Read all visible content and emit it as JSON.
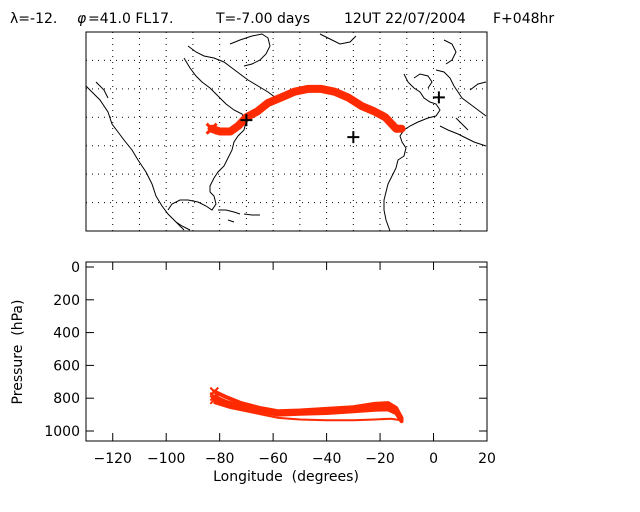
{
  "header": {
    "lambda": "λ=-12.",
    "phi_sym": "φ",
    "phi_rest": "=41.0 FL17.",
    "time": "T=-7.00 days",
    "date": "12UT 22/07/2004",
    "forecast": "F+048hr"
  },
  "colors": {
    "trajectory": "#ff2a00",
    "axes": "#000000",
    "background": "#ffffff"
  },
  "map": {
    "type": "map",
    "region": "North Atlantic",
    "lon_range": [
      -130,
      20
    ],
    "lat_range": [
      0,
      70
    ],
    "grid": "dotted",
    "markers": [
      {
        "icon": "plus-icon",
        "lon": -70,
        "lat": 39
      },
      {
        "icon": "plus-icon",
        "lon": -30,
        "lat": 33
      },
      {
        "icon": "plus-icon",
        "lon": 2,
        "lat": 47
      }
    ],
    "trajectory": [
      [
        -83,
        36
      ],
      [
        -80,
        35
      ],
      [
        -76,
        35
      ],
      [
        -73,
        37
      ],
      [
        -70,
        40
      ],
      [
        -66,
        42
      ],
      [
        -62,
        45
      ],
      [
        -57,
        47
      ],
      [
        -52,
        49
      ],
      [
        -47,
        50
      ],
      [
        -42,
        50
      ],
      [
        -37,
        49
      ],
      [
        -32,
        47
      ],
      [
        -27,
        44
      ],
      [
        -22,
        42
      ],
      [
        -18,
        40
      ],
      [
        -14,
        36
      ],
      [
        -12,
        36
      ]
    ]
  },
  "chart_data": {
    "type": "line",
    "title": "",
    "xlabel": "Longitude  (degrees)",
    "ylabel": "Pressure  (hPa)",
    "xlim": [
      -130,
      20
    ],
    "ylim": [
      1000,
      0
    ],
    "xticks": [
      "−120",
      "−100",
      "−80",
      "−60",
      "−40",
      "−20",
      "0",
      "20"
    ],
    "xtick_values": [
      -120,
      -100,
      -80,
      -60,
      -40,
      -20,
      0,
      20
    ],
    "yticks": [
      "0",
      "200",
      "400",
      "600",
      "800",
      "1000"
    ],
    "ytick_values": [
      0,
      200,
      400,
      600,
      800,
      1000
    ],
    "series": [
      {
        "x": [
          -82,
          -78,
          -72,
          -65,
          -58,
          -50,
          -40,
          -30,
          -22,
          -17,
          -14,
          -12
        ],
        "y": [
          760,
          790,
          830,
          860,
          880,
          875,
          865,
          855,
          835,
          830,
          860,
          920
        ]
      },
      {
        "x": [
          -82,
          -78,
          -72,
          -65,
          -58,
          -50,
          -40,
          -30,
          -22,
          -17,
          -14,
          -12
        ],
        "y": [
          790,
          820,
          850,
          870,
          890,
          885,
          875,
          865,
          855,
          850,
          875,
          930
        ]
      },
      {
        "x": [
          -82,
          -78,
          -72,
          -65,
          -58,
          -50,
          -40,
          -30,
          -22,
          -17,
          -14,
          -12
        ],
        "y": [
          810,
          840,
          860,
          880,
          900,
          895,
          890,
          880,
          870,
          868,
          890,
          940
        ]
      },
      {
        "x": [
          -82,
          -76,
          -70,
          -64,
          -58,
          -50,
          -40,
          -30,
          -22,
          -16,
          -12
        ],
        "y": [
          830,
          860,
          880,
          900,
          920,
          930,
          935,
          935,
          930,
          925,
          935
        ]
      }
    ],
    "start_markers": [
      {
        "x": -82,
        "y": 760
      },
      {
        "x": -82,
        "y": 790
      },
      {
        "x": -82,
        "y": 810
      }
    ]
  }
}
